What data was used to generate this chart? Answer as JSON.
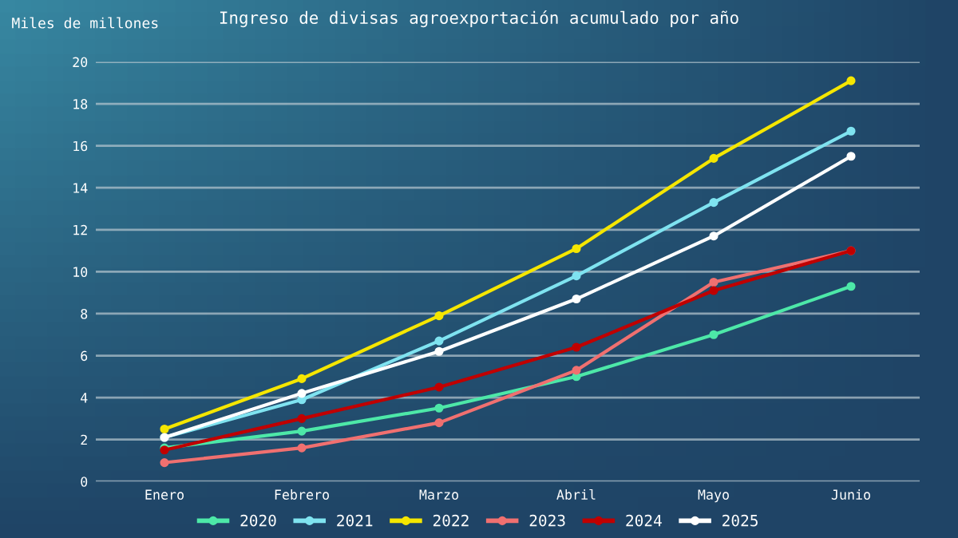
{
  "chart_data": {
    "type": "line",
    "title": "Ingreso de divisas agroexportación acumulado por año",
    "ylabel": "Miles de millones",
    "categories": [
      "Enero",
      "Febrero",
      "Marzo",
      "Abril",
      "Mayo",
      "Junio"
    ],
    "series": [
      {
        "name": "2020",
        "color": "#4de8a8",
        "values": [
          1.6,
          2.4,
          3.5,
          5.0,
          7.0,
          9.3
        ]
      },
      {
        "name": "2021",
        "color": "#7fe3f0",
        "values": [
          2.1,
          3.9,
          6.7,
          9.8,
          13.3,
          16.7
        ]
      },
      {
        "name": "2022",
        "color": "#f5e600",
        "values": [
          2.5,
          4.9,
          7.9,
          11.1,
          15.4,
          19.1
        ]
      },
      {
        "name": "2023",
        "color": "#f07070",
        "values": [
          0.9,
          1.6,
          2.8,
          5.3,
          9.5,
          11.0
        ]
      },
      {
        "name": "2024",
        "color": "#c00000",
        "values": [
          1.5,
          3.0,
          4.5,
          6.4,
          9.1,
          11.0
        ]
      },
      {
        "name": "2025",
        "color": "#ffffff",
        "values": [
          2.1,
          4.2,
          6.2,
          8.7,
          11.7,
          15.5
        ]
      }
    ],
    "ylim": [
      0,
      20
    ],
    "yticks": [
      0,
      2,
      4,
      6,
      8,
      10,
      12,
      14,
      16,
      18,
      20
    ],
    "grid": "y",
    "legend": "bottom",
    "marker": "circle",
    "line_style": "solid"
  }
}
